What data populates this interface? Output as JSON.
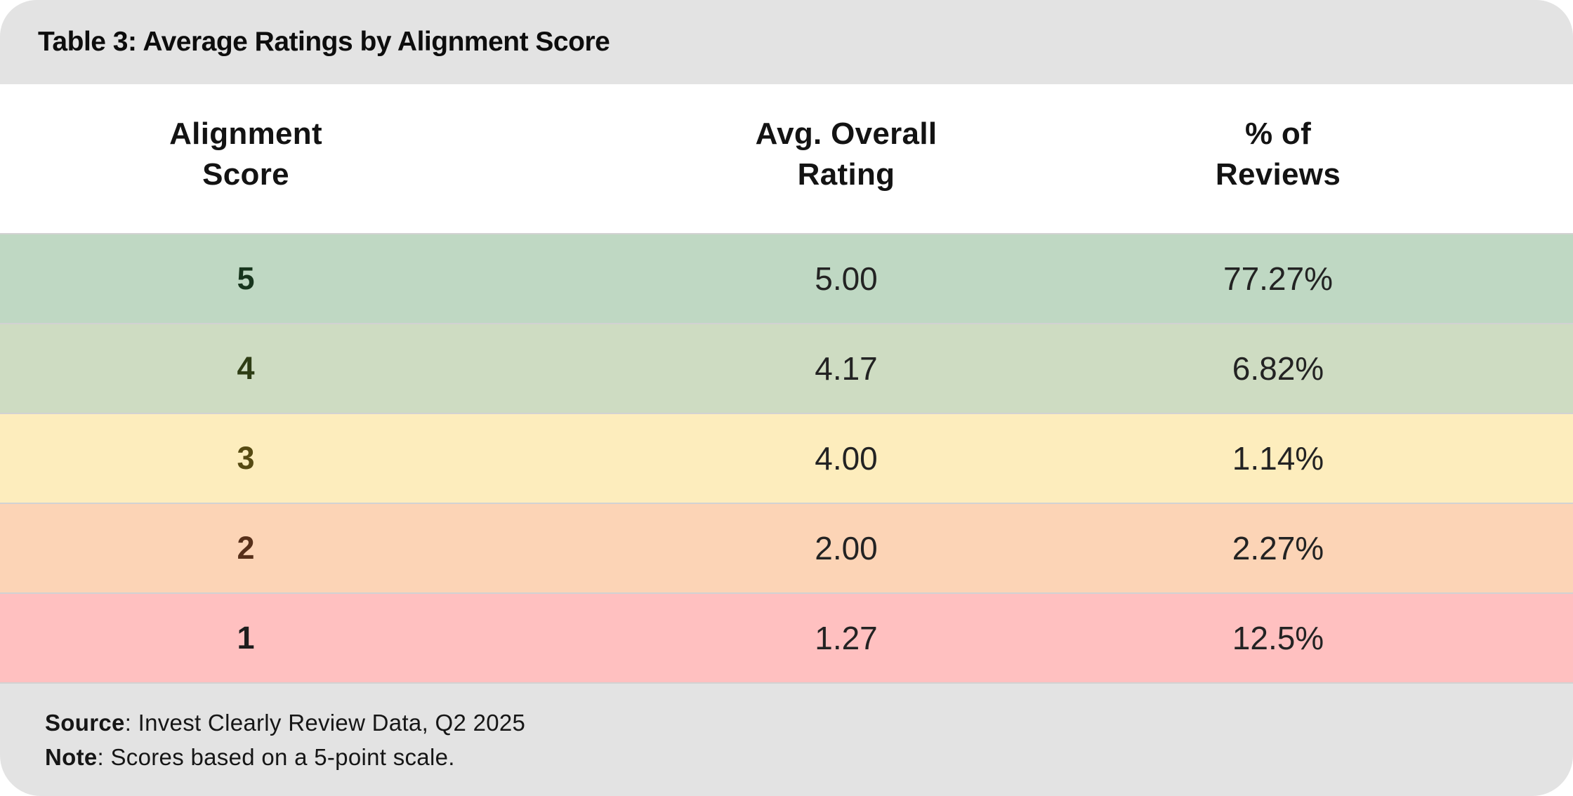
{
  "table": {
    "title": "Table 3: Average Ratings by Alignment Score",
    "columns": {
      "col1": {
        "line1": "Alignment",
        "line2": "Score"
      },
      "col2": {
        "line1": "Avg. Overall",
        "line2": "Rating"
      },
      "col3": {
        "line1": "% of",
        "line2": "Reviews"
      }
    },
    "rows": [
      {
        "score": "5",
        "rating": "5.00",
        "percent": "77.27%",
        "row_color": "#bfd8c3",
        "score_color": "#17351d"
      },
      {
        "score": "4",
        "rating": "4.17",
        "percent": "6.82%",
        "row_color": "#cedcc2",
        "score_color": "#2e3d14"
      },
      {
        "score": "3",
        "rating": "4.00",
        "percent": "1.14%",
        "row_color": "#fdedbd",
        "score_color": "#564a12"
      },
      {
        "score": "2",
        "rating": "2.00",
        "percent": "2.27%",
        "row_color": "#fcd4b6",
        "score_color": "#57301a"
      },
      {
        "score": "1",
        "rating": "1.27",
        "percent": "12.5%",
        "row_color": "#ffc0c0",
        "score_color": "#1d1d1d"
      }
    ],
    "footer": {
      "source_label": "Source",
      "source_rest": ": Invest Clearly Review Data, Q2 2025",
      "note_label": "Note",
      "note_rest": ": Scores based on a 5-point scale."
    }
  },
  "colors": {
    "header_footer_bg": "#e3e3e3",
    "row_divider": "#d2d2d2",
    "text": "#131313"
  },
  "chart_data": {
    "type": "table",
    "title": "Table 3: Average Ratings by Alignment Score",
    "columns": [
      "Alignment Score",
      "Avg. Overall Rating",
      "% of Reviews"
    ],
    "rows": [
      [
        5,
        5.0,
        "77.27%"
      ],
      [
        4,
        4.17,
        "6.82%"
      ],
      [
        3,
        4.0,
        "1.14%"
      ],
      [
        2,
        2.0,
        "2.27%"
      ],
      [
        1,
        1.27,
        "12.5%"
      ]
    ],
    "source": "Invest Clearly Review Data, Q2 2025",
    "note": "Scores based on a 5-point scale.",
    "layout": "rows color-coded green (5) to red (1)"
  }
}
